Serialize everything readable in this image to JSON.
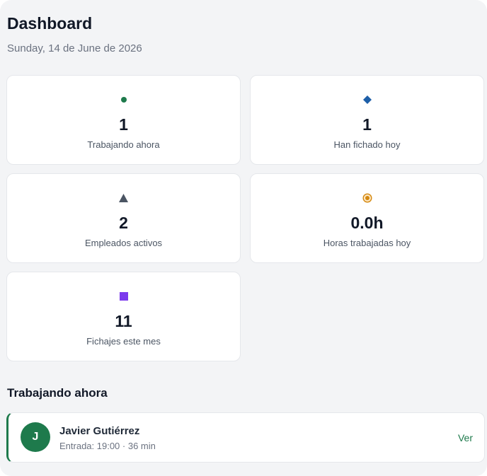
{
  "header": {
    "title": "Dashboard",
    "date": "Sunday, 14 de June de 2026"
  },
  "stats": [
    {
      "icon": "green-dot-icon",
      "color": "#1e7a4c",
      "value": "1",
      "label": "Trabajando ahora"
    },
    {
      "icon": "blue-diamond-icon",
      "color": "#1d5fa8",
      "value": "1",
      "label": "Han fichado hoy"
    },
    {
      "icon": "gray-triangle-icon",
      "color": "#4b5563",
      "value": "2",
      "label": "Empleados activos"
    },
    {
      "icon": "orange-target-icon",
      "color": "#d4880f",
      "value": "0.0h",
      "label": "Horas trabajadas hoy"
    },
    {
      "icon": "purple-square-icon",
      "color": "#7c3aed",
      "value": "11",
      "label": "Fichajes este mes"
    }
  ],
  "working_now": {
    "title": "Trabajando ahora",
    "items": [
      {
        "initial": "J",
        "name": "Javier Gutiérrez",
        "meta": "Entrada: 19:00 · 36 min",
        "action": "Ver"
      }
    ]
  }
}
